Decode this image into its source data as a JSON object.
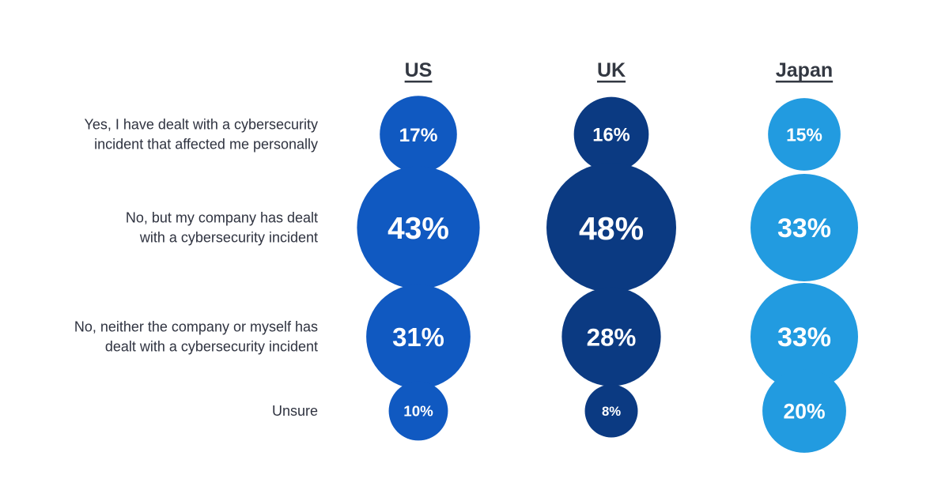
{
  "chart_data": {
    "type": "bubble-grid",
    "title": "",
    "columns": [
      "US",
      "UK",
      "Japan"
    ],
    "rows": [
      "Yes, I have dealt with a cybersecurity incident that affected me personally",
      "No, but my company has dealt with a cybersecurity incident",
      "No, neither the company or myself has dealt with a cybersecurity incident",
      "Unsure"
    ],
    "row_label_lines": [
      [
        "Yes, I have dealt with a cybersecurity",
        "incident that affected me personally"
      ],
      [
        "No, but my company has dealt",
        "with a cybersecurity incident"
      ],
      [
        "No, neither the company or myself has",
        "dealt with a cybersecurity incident"
      ],
      [
        "Unsure"
      ]
    ],
    "series": [
      {
        "name": "US",
        "values": [
          17,
          43,
          31,
          10
        ],
        "labels": [
          "17%",
          "43%",
          "31%",
          "10%"
        ],
        "color": "#1059c1"
      },
      {
        "name": "UK",
        "values": [
          16,
          48,
          28,
          8
        ],
        "labels": [
          "16%",
          "48%",
          "28%",
          "8%"
        ],
        "color": "#0b3a82"
      },
      {
        "name": "Japan",
        "values": [
          15,
          33,
          33,
          20
        ],
        "labels": [
          "15%",
          "33%",
          "33%",
          "20%"
        ],
        "color": "#229be0"
      }
    ],
    "unit": "%"
  }
}
